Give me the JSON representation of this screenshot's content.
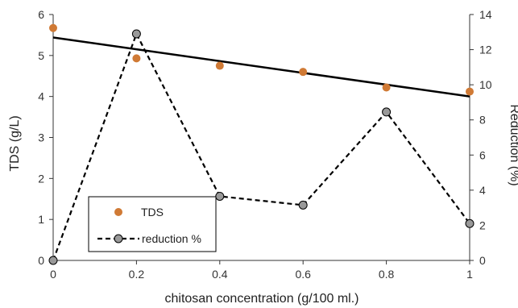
{
  "chart_data": {
    "type": "scatter",
    "xlabel": "chitosan concentration (g/100 ml.)",
    "ylabel": "TDS (g/L)",
    "y2label": "Reduction (%)",
    "xlim": [
      0,
      1
    ],
    "ylim": [
      0,
      6
    ],
    "y2lim": [
      0,
      14
    ],
    "x_ticks": [
      "0",
      "0.2",
      "0.4",
      "0.6",
      "0.8",
      "1"
    ],
    "y_ticks": [
      "0",
      "1",
      "2",
      "3",
      "4",
      "5",
      "6"
    ],
    "y2_ticks": [
      "0",
      "2",
      "4",
      "6",
      "8",
      "10",
      "12",
      "14"
    ],
    "grid": false,
    "legend_position": "bottom-left",
    "series": [
      {
        "name": "TDS",
        "axis": "left",
        "kind": "scatter",
        "x": [
          0,
          0.2,
          0.4,
          0.6,
          0.8,
          1
        ],
        "y": [
          5.67,
          4.93,
          4.75,
          4.6,
          4.22,
          4.12
        ],
        "color": "#d07a35"
      },
      {
        "name": "reduction %",
        "axis": "right",
        "kind": "line-markers",
        "x": [
          0,
          0.2,
          0.4,
          0.6,
          0.8,
          1
        ],
        "y": [
          0,
          12.9,
          3.65,
          3.15,
          8.45,
          2.1
        ],
        "color": "#000000",
        "marker_fill": "#999999"
      }
    ],
    "trendline": {
      "axis": "left",
      "x": [
        0,
        1
      ],
      "y": [
        5.44,
        4.0
      ],
      "color": "#000000"
    }
  }
}
